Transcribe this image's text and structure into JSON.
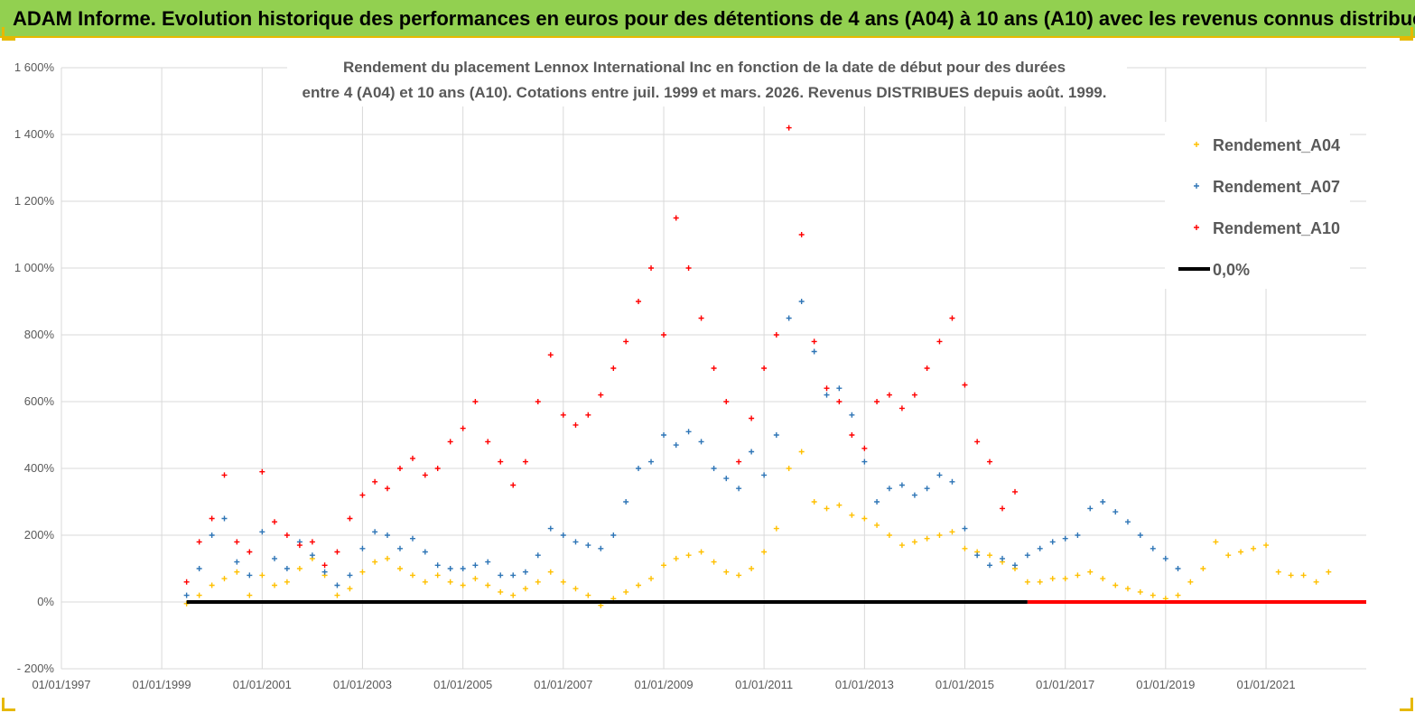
{
  "banner": {
    "title": "ADAM Informe. Evolution historique des performances en euros pour des détentions de 4 ans (A04) à 10 ans (A10) avec les revenus connus distribués",
    "background": "#92d050",
    "accent": "#e6b800"
  },
  "chart_data": {
    "type": "scatter",
    "title_lines": [
      "Rendement du placement Lennox International Inc en fonction de la date de début pour des durées",
      "entre 4 (A04) et 10 ans (A10).  Cotations entre juil. 1999 et mars. 2026. Revenus DISTRIBUES depuis août. 1999."
    ],
    "xlabel": "",
    "ylabel": "",
    "x_range": [
      "1997-01-01",
      "2022-12-31"
    ],
    "ylim": [
      -200,
      1600
    ],
    "y_ticks": [
      -200,
      0,
      200,
      400,
      600,
      800,
      1000,
      1200,
      1400,
      1600
    ],
    "y_tick_labels": [
      "- 200%",
      "0%",
      "200%",
      "400%",
      "600%",
      "800%",
      "1 000%",
      "1 200%",
      "1 400%",
      "1 600%"
    ],
    "x_ticks": [
      "1997-01-01",
      "1999-01-01",
      "2001-01-01",
      "2003-01-01",
      "2005-01-01",
      "2007-01-01",
      "2009-01-01",
      "2011-01-01",
      "2013-01-01",
      "2015-01-01",
      "2017-01-01",
      "2019-01-01",
      "2021-01-01"
    ],
    "x_tick_labels": [
      "01/01/1997",
      "01/01/1999",
      "01/01/2001",
      "01/01/2003",
      "01/01/2005",
      "01/01/2007",
      "01/01/2009",
      "01/01/2011",
      "01/01/2013",
      "01/01/2015",
      "01/01/2017",
      "01/01/2019",
      "01/01/2021"
    ],
    "grid": "horizontal",
    "legend_position": "right",
    "series": [
      {
        "name": "Rendement_A04",
        "color": "#ffc000",
        "marker": "+",
        "points": [
          [
            "1999-07-01",
            -5
          ],
          [
            "1999-10-01",
            20
          ],
          [
            "2000-01-01",
            50
          ],
          [
            "2000-04-01",
            70
          ],
          [
            "2000-07-01",
            90
          ],
          [
            "2000-10-01",
            20
          ],
          [
            "2001-01-01",
            80
          ],
          [
            "2001-04-01",
            50
          ],
          [
            "2001-07-01",
            60
          ],
          [
            "2001-10-01",
            100
          ],
          [
            "2002-01-01",
            130
          ],
          [
            "2002-04-01",
            80
          ],
          [
            "2002-07-01",
            20
          ],
          [
            "2002-10-01",
            40
          ],
          [
            "2003-01-01",
            90
          ],
          [
            "2003-04-01",
            120
          ],
          [
            "2003-07-01",
            130
          ],
          [
            "2003-10-01",
            100
          ],
          [
            "2004-01-01",
            80
          ],
          [
            "2004-04-01",
            60
          ],
          [
            "2004-07-01",
            80
          ],
          [
            "2004-10-01",
            60
          ],
          [
            "2005-01-01",
            50
          ],
          [
            "2005-04-01",
            70
          ],
          [
            "2005-07-01",
            50
          ],
          [
            "2005-10-01",
            30
          ],
          [
            "2006-01-01",
            20
          ],
          [
            "2006-04-01",
            40
          ],
          [
            "2006-07-01",
            60
          ],
          [
            "2006-10-01",
            90
          ],
          [
            "2007-01-01",
            60
          ],
          [
            "2007-04-01",
            40
          ],
          [
            "2007-07-01",
            20
          ],
          [
            "2007-10-01",
            -10
          ],
          [
            "2008-01-01",
            10
          ],
          [
            "2008-04-01",
            30
          ],
          [
            "2008-07-01",
            50
          ],
          [
            "2008-10-01",
            70
          ],
          [
            "2009-01-01",
            110
          ],
          [
            "2009-04-01",
            130
          ],
          [
            "2009-07-01",
            140
          ],
          [
            "2009-10-01",
            150
          ],
          [
            "2010-01-01",
            120
          ],
          [
            "2010-04-01",
            90
          ],
          [
            "2010-07-01",
            80
          ],
          [
            "2010-10-01",
            100
          ],
          [
            "2011-01-01",
            150
          ],
          [
            "2011-04-01",
            220
          ],
          [
            "2011-07-01",
            400
          ],
          [
            "2011-10-01",
            450
          ],
          [
            "2012-01-01",
            300
          ],
          [
            "2012-04-01",
            280
          ],
          [
            "2012-07-01",
            290
          ],
          [
            "2012-10-01",
            260
          ],
          [
            "2013-01-01",
            250
          ],
          [
            "2013-04-01",
            230
          ],
          [
            "2013-07-01",
            200
          ],
          [
            "2013-10-01",
            170
          ],
          [
            "2014-01-01",
            180
          ],
          [
            "2014-04-01",
            190
          ],
          [
            "2014-07-01",
            200
          ],
          [
            "2014-10-01",
            210
          ],
          [
            "2015-01-01",
            160
          ],
          [
            "2015-04-01",
            150
          ],
          [
            "2015-07-01",
            140
          ],
          [
            "2015-10-01",
            120
          ],
          [
            "2016-01-01",
            100
          ],
          [
            "2016-04-01",
            60
          ],
          [
            "2016-07-01",
            60
          ],
          [
            "2016-10-01",
            70
          ],
          [
            "2017-01-01",
            70
          ],
          [
            "2017-04-01",
            80
          ],
          [
            "2017-07-01",
            90
          ],
          [
            "2017-10-01",
            70
          ],
          [
            "2018-01-01",
            50
          ],
          [
            "2018-04-01",
            40
          ],
          [
            "2018-07-01",
            30
          ],
          [
            "2018-10-01",
            20
          ],
          [
            "2019-01-01",
            10
          ],
          [
            "2019-04-01",
            20
          ],
          [
            "2019-07-01",
            60
          ],
          [
            "2019-10-01",
            100
          ],
          [
            "2020-01-01",
            180
          ],
          [
            "2020-04-01",
            140
          ],
          [
            "2020-07-01",
            150
          ],
          [
            "2020-10-01",
            160
          ],
          [
            "2021-01-01",
            170
          ],
          [
            "2021-04-01",
            90
          ],
          [
            "2021-07-01",
            80
          ],
          [
            "2021-10-01",
            80
          ],
          [
            "2022-01-01",
            60
          ],
          [
            "2022-04-01",
            90
          ]
        ]
      },
      {
        "name": "Rendement_A07",
        "color": "#2e75b6",
        "marker": "+",
        "points": [
          [
            "1999-07-01",
            20
          ],
          [
            "1999-10-01",
            100
          ],
          [
            "2000-01-01",
            200
          ],
          [
            "2000-04-01",
            250
          ],
          [
            "2000-07-01",
            120
          ],
          [
            "2000-10-01",
            80
          ],
          [
            "2001-01-01",
            210
          ],
          [
            "2001-04-01",
            130
          ],
          [
            "2001-07-01",
            100
          ],
          [
            "2001-10-01",
            180
          ],
          [
            "2002-01-01",
            140
          ],
          [
            "2002-04-01",
            90
          ],
          [
            "2002-07-01",
            50
          ],
          [
            "2002-10-01",
            80
          ],
          [
            "2003-01-01",
            160
          ],
          [
            "2003-04-01",
            210
          ],
          [
            "2003-07-01",
            200
          ],
          [
            "2003-10-01",
            160
          ],
          [
            "2004-01-01",
            190
          ],
          [
            "2004-04-01",
            150
          ],
          [
            "2004-07-01",
            110
          ],
          [
            "2004-10-01",
            100
          ],
          [
            "2005-01-01",
            100
          ],
          [
            "2005-04-01",
            110
          ],
          [
            "2005-07-01",
            120
          ],
          [
            "2005-10-01",
            80
          ],
          [
            "2006-01-01",
            80
          ],
          [
            "2006-04-01",
            90
          ],
          [
            "2006-07-01",
            140
          ],
          [
            "2006-10-01",
            220
          ],
          [
            "2007-01-01",
            200
          ],
          [
            "2007-04-01",
            180
          ],
          [
            "2007-07-01",
            170
          ],
          [
            "2007-10-01",
            160
          ],
          [
            "2008-01-01",
            200
          ],
          [
            "2008-04-01",
            300
          ],
          [
            "2008-07-01",
            400
          ],
          [
            "2008-10-01",
            420
          ],
          [
            "2009-01-01",
            500
          ],
          [
            "2009-04-01",
            470
          ],
          [
            "2009-07-01",
            510
          ],
          [
            "2009-10-01",
            480
          ],
          [
            "2010-01-01",
            400
          ],
          [
            "2010-04-01",
            370
          ],
          [
            "2010-07-01",
            340
          ],
          [
            "2010-10-01",
            450
          ],
          [
            "2011-01-01",
            380
          ],
          [
            "2011-04-01",
            500
          ],
          [
            "2011-07-01",
            850
          ],
          [
            "2011-10-01",
            900
          ],
          [
            "2012-01-01",
            750
          ],
          [
            "2012-04-01",
            620
          ],
          [
            "2012-07-01",
            640
          ],
          [
            "2012-10-01",
            560
          ],
          [
            "2013-01-01",
            420
          ],
          [
            "2013-04-01",
            300
          ],
          [
            "2013-07-01",
            340
          ],
          [
            "2013-10-01",
            350
          ],
          [
            "2014-01-01",
            320
          ],
          [
            "2014-04-01",
            340
          ],
          [
            "2014-07-01",
            380
          ],
          [
            "2014-10-01",
            360
          ],
          [
            "2015-01-01",
            220
          ],
          [
            "2015-04-01",
            140
          ],
          [
            "2015-07-01",
            110
          ],
          [
            "2015-10-01",
            130
          ],
          [
            "2016-01-01",
            110
          ],
          [
            "2016-04-01",
            140
          ],
          [
            "2016-07-01",
            160
          ],
          [
            "2016-10-01",
            180
          ],
          [
            "2017-01-01",
            190
          ],
          [
            "2017-04-01",
            200
          ],
          [
            "2017-07-01",
            280
          ],
          [
            "2017-10-01",
            300
          ],
          [
            "2018-01-01",
            270
          ],
          [
            "2018-04-01",
            240
          ],
          [
            "2018-07-01",
            200
          ],
          [
            "2018-10-01",
            160
          ],
          [
            "2019-01-01",
            130
          ],
          [
            "2019-04-01",
            100
          ]
        ]
      },
      {
        "name": "Rendement_A10",
        "color": "#ff0000",
        "marker": "+",
        "points": [
          [
            "1999-07-01",
            60
          ],
          [
            "1999-10-01",
            180
          ],
          [
            "2000-01-01",
            250
          ],
          [
            "2000-04-01",
            380
          ],
          [
            "2000-07-01",
            180
          ],
          [
            "2000-10-01",
            150
          ],
          [
            "2001-01-01",
            390
          ],
          [
            "2001-04-01",
            240
          ],
          [
            "2001-07-01",
            200
          ],
          [
            "2001-10-01",
            170
          ],
          [
            "2002-01-01",
            180
          ],
          [
            "2002-04-01",
            110
          ],
          [
            "2002-07-01",
            150
          ],
          [
            "2002-10-01",
            250
          ],
          [
            "2003-01-01",
            320
          ],
          [
            "2003-04-01",
            360
          ],
          [
            "2003-07-01",
            340
          ],
          [
            "2003-10-01",
            400
          ],
          [
            "2004-01-01",
            430
          ],
          [
            "2004-04-01",
            380
          ],
          [
            "2004-07-01",
            400
          ],
          [
            "2004-10-01",
            480
          ],
          [
            "2005-01-01",
            520
          ],
          [
            "2005-04-01",
            600
          ],
          [
            "2005-07-01",
            480
          ],
          [
            "2005-10-01",
            420
          ],
          [
            "2006-01-01",
            350
          ],
          [
            "2006-04-01",
            420
          ],
          [
            "2006-07-01",
            600
          ],
          [
            "2006-10-01",
            740
          ],
          [
            "2007-01-01",
            560
          ],
          [
            "2007-04-01",
            530
          ],
          [
            "2007-07-01",
            560
          ],
          [
            "2007-10-01",
            620
          ],
          [
            "2008-01-01",
            700
          ],
          [
            "2008-04-01",
            780
          ],
          [
            "2008-07-01",
            900
          ],
          [
            "2008-10-01",
            1000
          ],
          [
            "2009-01-01",
            800
          ],
          [
            "2009-04-01",
            1150
          ],
          [
            "2009-07-01",
            1000
          ],
          [
            "2009-10-01",
            850
          ],
          [
            "2010-01-01",
            700
          ],
          [
            "2010-04-01",
            600
          ],
          [
            "2010-07-01",
            420
          ],
          [
            "2010-10-01",
            550
          ],
          [
            "2011-01-01",
            700
          ],
          [
            "2011-04-01",
            800
          ],
          [
            "2011-07-01",
            1420
          ],
          [
            "2011-10-01",
            1100
          ],
          [
            "2012-01-01",
            780
          ],
          [
            "2012-04-01",
            640
          ],
          [
            "2012-07-01",
            600
          ],
          [
            "2012-10-01",
            500
          ],
          [
            "2013-01-01",
            460
          ],
          [
            "2013-04-01",
            600
          ],
          [
            "2013-07-01",
            620
          ],
          [
            "2013-10-01",
            580
          ],
          [
            "2014-01-01",
            620
          ],
          [
            "2014-04-01",
            700
          ],
          [
            "2014-07-01",
            780
          ],
          [
            "2014-10-01",
            850
          ],
          [
            "2015-01-01",
            650
          ],
          [
            "2015-04-01",
            480
          ],
          [
            "2015-07-01",
            420
          ],
          [
            "2015-10-01",
            280
          ],
          [
            "2016-01-01",
            330
          ]
        ]
      },
      {
        "name": "0,0%",
        "color": "#000000",
        "marker": "line",
        "points": [
          [
            "1999-07-01",
            0
          ],
          [
            "2016-04-01",
            0
          ]
        ]
      },
      {
        "name": "",
        "color": "#ff0000",
        "marker": "line",
        "points": [
          [
            "2016-04-01",
            0
          ],
          [
            "2022-12-31",
            0
          ]
        ]
      }
    ]
  }
}
